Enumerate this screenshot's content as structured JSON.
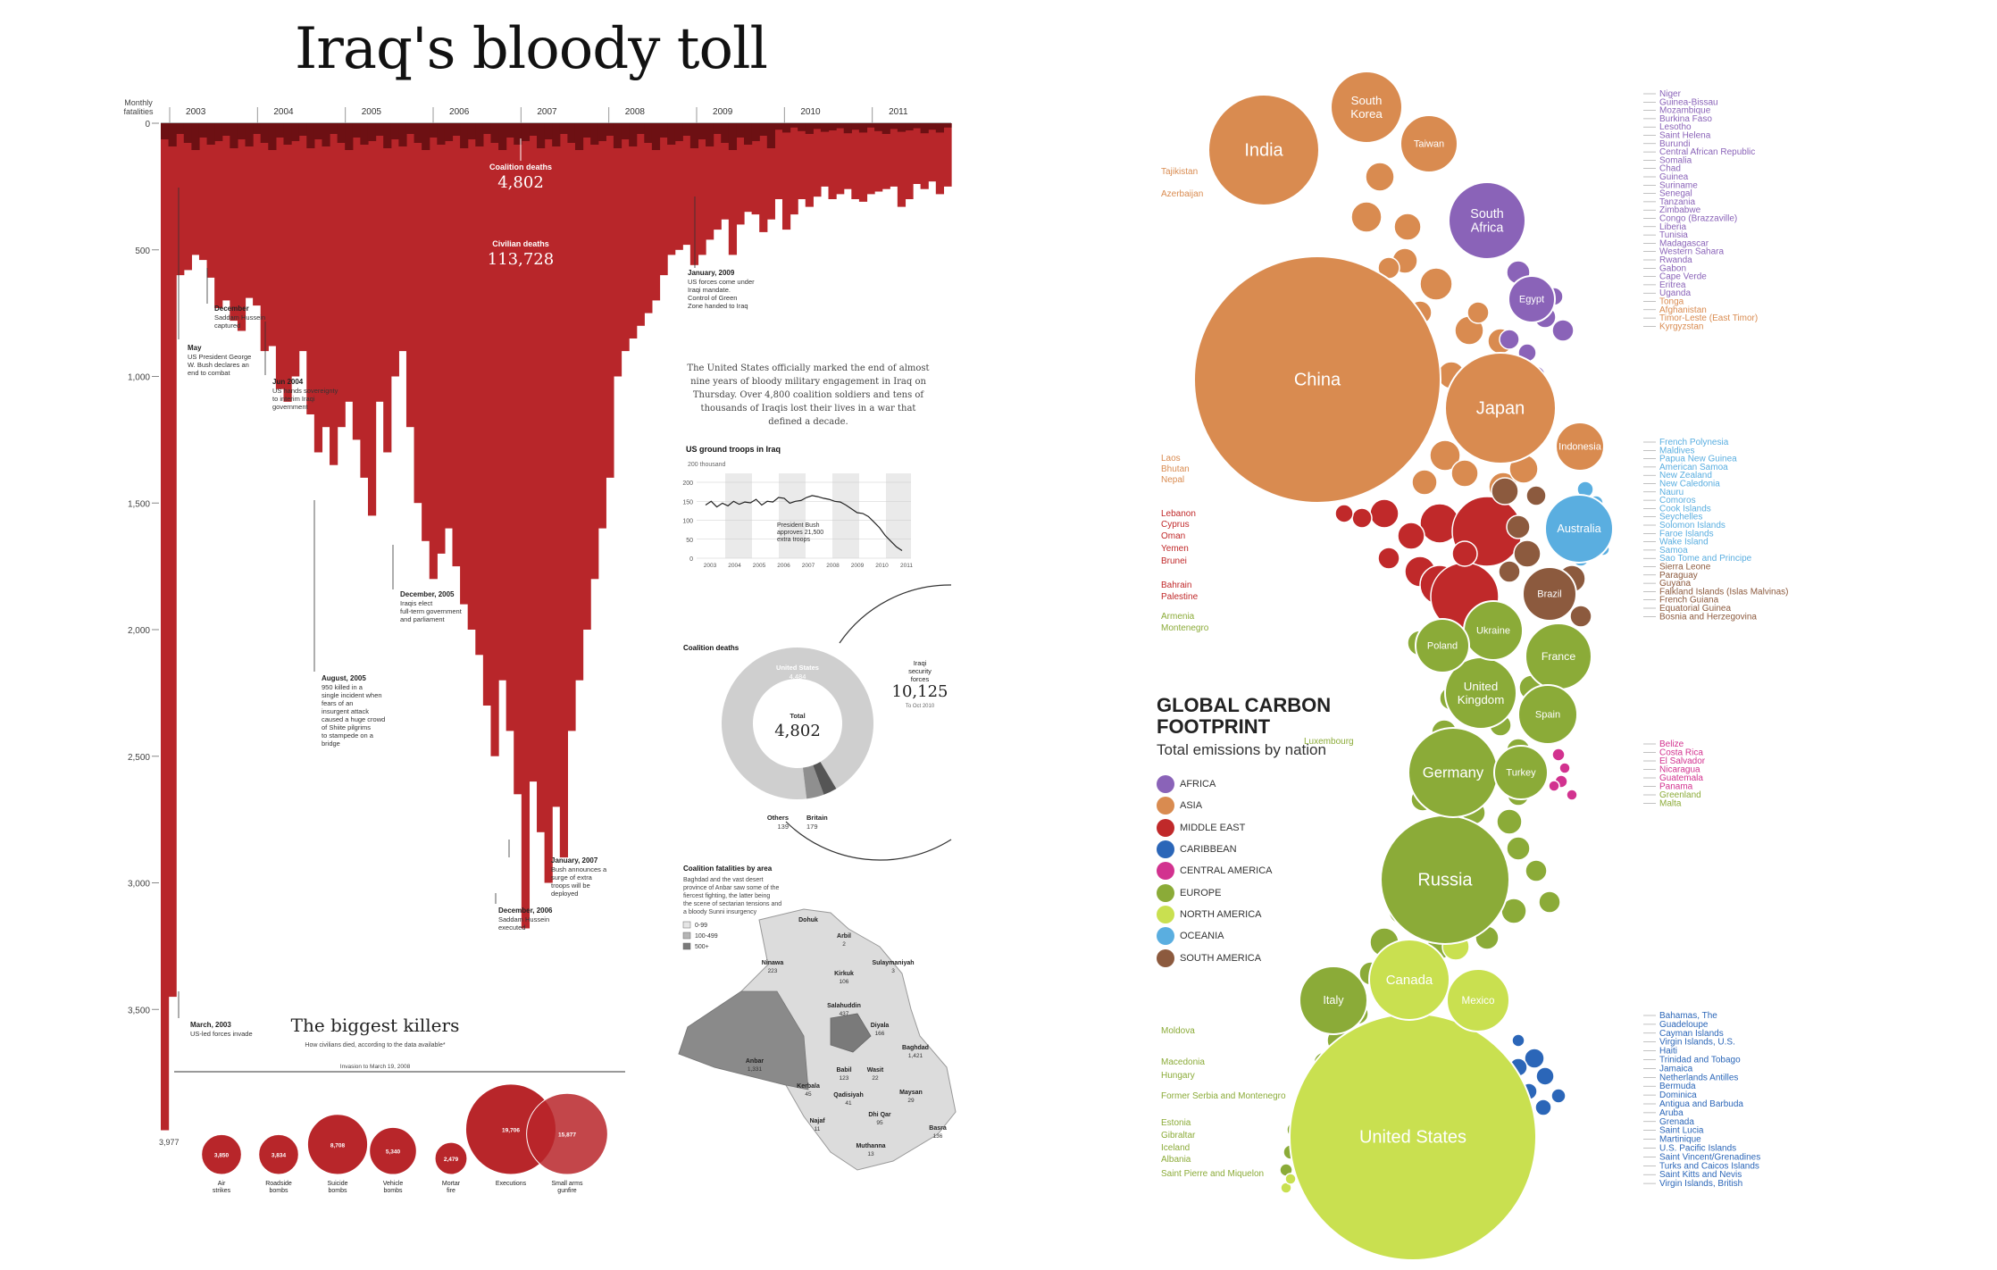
{
  "left": {
    "title": "Iraq's bloody toll",
    "axis_label": "Monthly fatalities",
    "years": [
      "2003",
      "2004",
      "2005",
      "2006",
      "2007",
      "2008",
      "2009",
      "2010",
      "2011"
    ],
    "yticks": [
      "0",
      "500",
      "1,000",
      "1,500",
      "2,000",
      "2,500",
      "3,000",
      "3,500"
    ],
    "coalition_label": "Coalition deaths",
    "coalition_value": "4,802",
    "civilian_label": "Civilian deaths",
    "civilian_value": "113,728",
    "intro_text": "The United States officially marked the end of almost nine years of bloody military engagement in Iraq on Thursday. Over 4,800 coalition soldiers and tens of thousands of Iraqis lost their lives in a war that defined a decade.",
    "annotations": [
      {
        "title": "May",
        "text": "US President George W. Bush declares an end to combat"
      },
      {
        "title": "December",
        "text": "Saddam Hussein captured"
      },
      {
        "title": "Jun 2004",
        "text": "US hands sovereignty to interim Iraqi government"
      },
      {
        "title": "August, 2005",
        "text": "950 killed in a single incident when fears of an insurgent attack caused a huge crowd of Shiite pilgrims to stampede on a bridge"
      },
      {
        "title": "December, 2005",
        "text": "Iraqis elect full-term government and parliament"
      },
      {
        "title": "January, 2007",
        "text": "Bush announces a surge of extra troops will be deployed"
      },
      {
        "title": "December, 2006",
        "text": "Saddam Hussein executed"
      },
      {
        "title": "January, 2009",
        "text": "US forces come under Iraqi mandate. Control of Green Zone handed to Iraq"
      },
      {
        "title": "March, 2003",
        "text": "US-led forces invade"
      }
    ],
    "bottom_value": "3,977",
    "troops": {
      "title": "US ground troops in Iraq",
      "unit": "200 thousand",
      "yticks": [
        "200",
        "150",
        "100",
        "50",
        "0"
      ],
      "note": "President Bush approves 21,500 extra troops",
      "years": [
        "2003",
        "2004",
        "2005",
        "2006",
        "2007",
        "2008",
        "2009",
        "2010",
        "2011"
      ]
    },
    "donut": {
      "title": "Coalition deaths",
      "us_label": "United States",
      "us_value": "4,484",
      "total_label": "Total",
      "total_value": "4,802",
      "others_label": "Others",
      "others_value": "139",
      "britain_label": "Britain",
      "britain_value": "179",
      "iraqi_label": "Iraqi security forces",
      "iraqi_value": "10,125",
      "iraqi_note": "To Oct 2010"
    },
    "map": {
      "title": "Coalition fatalities by area",
      "desc": "Baghdad and the vast desert province of Anbar saw some of the fiercest fighting, the latter being the scene of sectarian tensions and a bloody Sunni insurgency",
      "legend": [
        "0-99",
        "100-499",
        "500+"
      ],
      "regions": [
        {
          "name": "Dohuk",
          "value": ""
        },
        {
          "name": "Arbil",
          "value": "2"
        },
        {
          "name": "Ninawa",
          "value": "223"
        },
        {
          "name": "Sulaymaniyah",
          "value": "3"
        },
        {
          "name": "Kirkuk",
          "value": "106"
        },
        {
          "name": "Salahuddin",
          "value": "437"
        },
        {
          "name": "Diyala",
          "value": "166"
        },
        {
          "name": "Anbar",
          "value": "1,331"
        },
        {
          "name": "Baghdad",
          "value": "1,421"
        },
        {
          "name": "Babil",
          "value": "123"
        },
        {
          "name": "Wasit",
          "value": "22"
        },
        {
          "name": "Kerbala",
          "value": "45"
        },
        {
          "name": "Qadisiyah",
          "value": "41"
        },
        {
          "name": "Maysan",
          "value": "29"
        },
        {
          "name": "Najaf",
          "value": "11"
        },
        {
          "name": "Dhi Qar",
          "value": "95"
        },
        {
          "name": "Basra",
          "value": "136"
        },
        {
          "name": "Muthanna",
          "value": "13"
        }
      ]
    },
    "killers": {
      "title": "The biggest killers",
      "subtitle": "How civilians died, according to the data available*",
      "range_label": "Invasion to March 19, 2008",
      "items": [
        {
          "label": "Air strikes",
          "value": "3,850"
        },
        {
          "label": "Roadside bombs",
          "value": "3,834"
        },
        {
          "label": "Suicide bombs",
          "value": "8,708"
        },
        {
          "label": "Vehicle bombs",
          "value": "5,340"
        },
        {
          "label": "Mortar fire",
          "value": "2,479"
        },
        {
          "label": "Executions",
          "value": "19,706"
        },
        {
          "label": "Small arms gunfire",
          "value": "15,877"
        }
      ]
    }
  },
  "right": {
    "title": "GLOBAL CARBON FOOTPRINT",
    "subtitle": "Total emissions by nation",
    "colors": {
      "AFRICA": "#8a63b8",
      "ASIA": "#d98b50",
      "MIDDLE EAST": "#c0292a",
      "CARIBBEAN": "#2b66b8",
      "CENTRAL AMERICA": "#d2328f",
      "EUROPE": "#8bab38",
      "NORTH AMERICA": "#c9e050",
      "OCEANIA": "#5aaee0",
      "SOUTH AMERICA": "#8c5a3e"
    },
    "legend": [
      "AFRICA",
      "ASIA",
      "MIDDLE EAST",
      "CARIBBEAN",
      "CENTRAL AMERICA",
      "EUROPE",
      "NORTH AMERICA",
      "OCEANIA",
      "SOUTH AMERICA"
    ],
    "bubbles": [
      {
        "name": "United States",
        "region": "NORTH AMERICA"
      },
      {
        "name": "China",
        "region": "ASIA"
      },
      {
        "name": "Russia",
        "region": "EUROPE"
      },
      {
        "name": "Japan",
        "region": "ASIA"
      },
      {
        "name": "India",
        "region": "ASIA"
      },
      {
        "name": "Germany",
        "region": "EUROPE"
      },
      {
        "name": "Canada",
        "region": "NORTH AMERICA"
      },
      {
        "name": "United Kingdom",
        "region": "EUROPE"
      },
      {
        "name": "South Korea",
        "region": "ASIA"
      },
      {
        "name": "Italy",
        "region": "EUROPE"
      },
      {
        "name": "Australia",
        "region": "OCEANIA"
      },
      {
        "name": "France",
        "region": "EUROPE"
      },
      {
        "name": "Mexico",
        "region": "NORTH AMERICA"
      },
      {
        "name": "South Africa",
        "region": "AFRICA"
      },
      {
        "name": "Spain",
        "region": "EUROPE"
      },
      {
        "name": "Ukraine",
        "region": "EUROPE"
      },
      {
        "name": "Taiwan",
        "region": "ASIA"
      },
      {
        "name": "Turkey",
        "region": "EUROPE"
      },
      {
        "name": "Poland",
        "region": "EUROPE"
      },
      {
        "name": "Brazil",
        "region": "SOUTH AMERICA"
      },
      {
        "name": "Egypt",
        "region": "AFRICA"
      },
      {
        "name": "Indonesia",
        "region": "ASIA"
      }
    ],
    "left_labels": [
      "Tajikistan",
      "Azerbaijan",
      "Laos",
      "Bhutan",
      "Nepal",
      "Lebanon",
      "Cyprus",
      "Oman",
      "Yemen",
      "Brunei",
      "Bahrain",
      "Palestine",
      "Armenia",
      "Montenegro",
      "Luxembourg",
      "Moldova",
      "Macedonia",
      "Hungary",
      "Former Serbia and Montenegro",
      "Estonia",
      "Gibraltar",
      "Iceland",
      "Albania",
      "Saint Pierre and Miquelon"
    ],
    "right_labels_top": [
      "Niger",
      "Guinea-Bissau",
      "Mozambique",
      "Burkina Faso",
      "Lesotho",
      "Saint Helena",
      "Burundi",
      "Central African Republic",
      "Somalia",
      "Chad",
      "Guinea",
      "Suriname",
      "Senegal",
      "Tanzania",
      "Zimbabwe",
      "Congo (Brazzaville)",
      "Liberia",
      "Tunisia",
      "Madagascar",
      "Western Sahara",
      "Rwanda",
      "Gabon",
      "Cape Verde",
      "Eritrea",
      "Uganda",
      "Tonga",
      "Afghanistan",
      "Timor-Leste (East Timor)",
      "Kyrgyzstan"
    ],
    "right_labels_mid": [
      "French Polynesia",
      "Maldives",
      "Papua New Guinea",
      "American Samoa",
      "New Zealand",
      "New Caledonia",
      "Nauru",
      "Comoros",
      "Cook Islands",
      "Seychelles",
      "Solomon Islands",
      "Faroe Islands",
      "Wake Island",
      "Samoa",
      "Sao Tome and Principe",
      "Sierra Leone",
      "Paraguay",
      "Guyana",
      "Falkland Islands (Islas Malvinas)",
      "French Guiana",
      "Equatorial Guinea",
      "Bosnia and Herzegovina"
    ],
    "right_labels_central": [
      "Belize",
      "Costa Rica",
      "El Salvador",
      "Nicaragua",
      "Guatemala",
      "Panama",
      "Greenland",
      "Malta"
    ],
    "right_labels_bottom": [
      "Bahamas, The",
      "Guadeloupe",
      "Cayman Islands",
      "Virgin Islands, U.S.",
      "Haiti",
      "Trinidad and Tobago",
      "Jamaica",
      "Netherlands Antilles",
      "Bermuda",
      "Dominica",
      "Antigua and Barbuda",
      "Aruba",
      "Grenada",
      "Saint Lucia",
      "Martinique",
      "U.S. Pacific Islands",
      "Saint Vincent/Grenadines",
      "Turks and Caicos Islands",
      "Saint Kitts and Nevis",
      "Virgin Islands, British"
    ]
  },
  "chart_data": [
    {
      "type": "bar",
      "title": "Iraq's bloody toll",
      "ylabel": "Monthly fatalities",
      "ylim": [
        0,
        4000
      ],
      "x": [
        "2003-03",
        "2003-06",
        "2003-12",
        "2004-06",
        "2004-12",
        "2005-06",
        "2005-12",
        "2006-06",
        "2006-12",
        "2007-06",
        "2007-12",
        "2008-06",
        "2008-12",
        "2009-06",
        "2009-12",
        "2010-06",
        "2010-12",
        "2011-06",
        "2011-12"
      ],
      "series": [
        {
          "name": "Civilian deaths",
          "values": [
            3977,
            600,
            720,
            900,
            1200,
            1450,
            1700,
            2600,
            3200,
            2000,
            900,
            700,
            500,
            400,
            350,
            320,
            300,
            330,
            280
          ]
        },
        {
          "name": "Coalition deaths",
          "values": [
            100,
            60,
            80,
            90,
            120,
            90,
            70,
            80,
            110,
            120,
            40,
            30,
            20,
            15,
            10,
            8,
            5,
            10,
            3
          ]
        }
      ]
    },
    {
      "type": "line",
      "title": "US ground troops in Iraq",
      "ylabel": "200 thousand",
      "ylim": [
        0,
        200
      ],
      "x": [
        "2003",
        "2004",
        "2005",
        "2006",
        "2007",
        "2008",
        "2009",
        "2010",
        "2011"
      ],
      "series": [
        {
          "name": "",
          "values": [
            140,
            135,
            150,
            140,
            165,
            150,
            130,
            90,
            20
          ]
        }
      ]
    },
    {
      "type": "pie",
      "title": "Coalition deaths",
      "categories": [
        "United States",
        "Britain",
        "Others"
      ],
      "values": [
        4484,
        179,
        139
      ]
    },
    {
      "type": "scatter",
      "title": "The biggest killers",
      "categories": [
        "Air strikes",
        "Roadside bombs",
        "Suicide bombs",
        "Vehicle bombs",
        "Mortar fire",
        "Executions",
        "Small arms gunfire"
      ],
      "values": [
        3850,
        3834,
        8708,
        5340,
        2479,
        19706,
        15877
      ]
    }
  ]
}
